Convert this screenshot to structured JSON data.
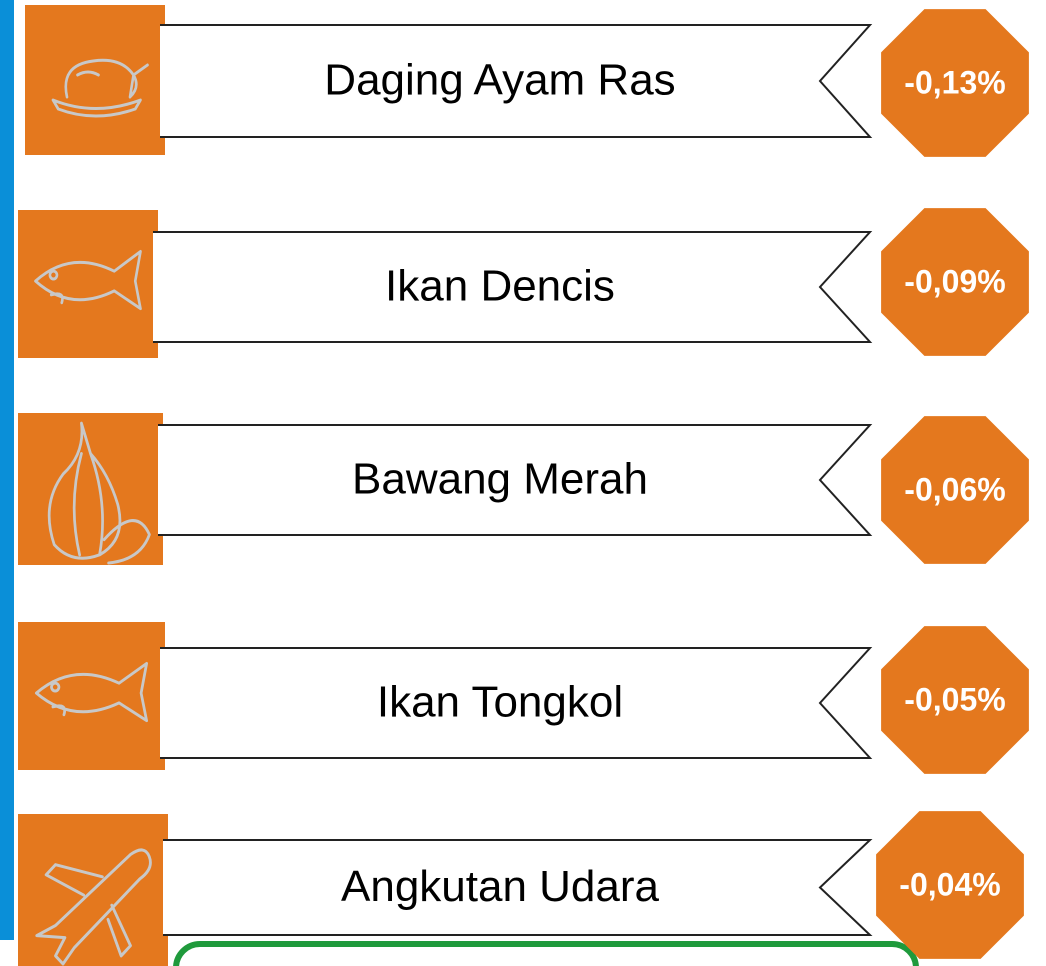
{
  "items": [
    {
      "label": "Daging Ayam Ras",
      "value": "-0,13%"
    },
    {
      "label": "Ikan Dencis",
      "value": "-0,09%"
    },
    {
      "label": "Bawang Merah",
      "value": "-0,06%"
    },
    {
      "label": "Ikan Tongkol",
      "value": "-0,05%"
    },
    {
      "label": "Angkutan Udara",
      "value": "-0,04%"
    }
  ]
}
